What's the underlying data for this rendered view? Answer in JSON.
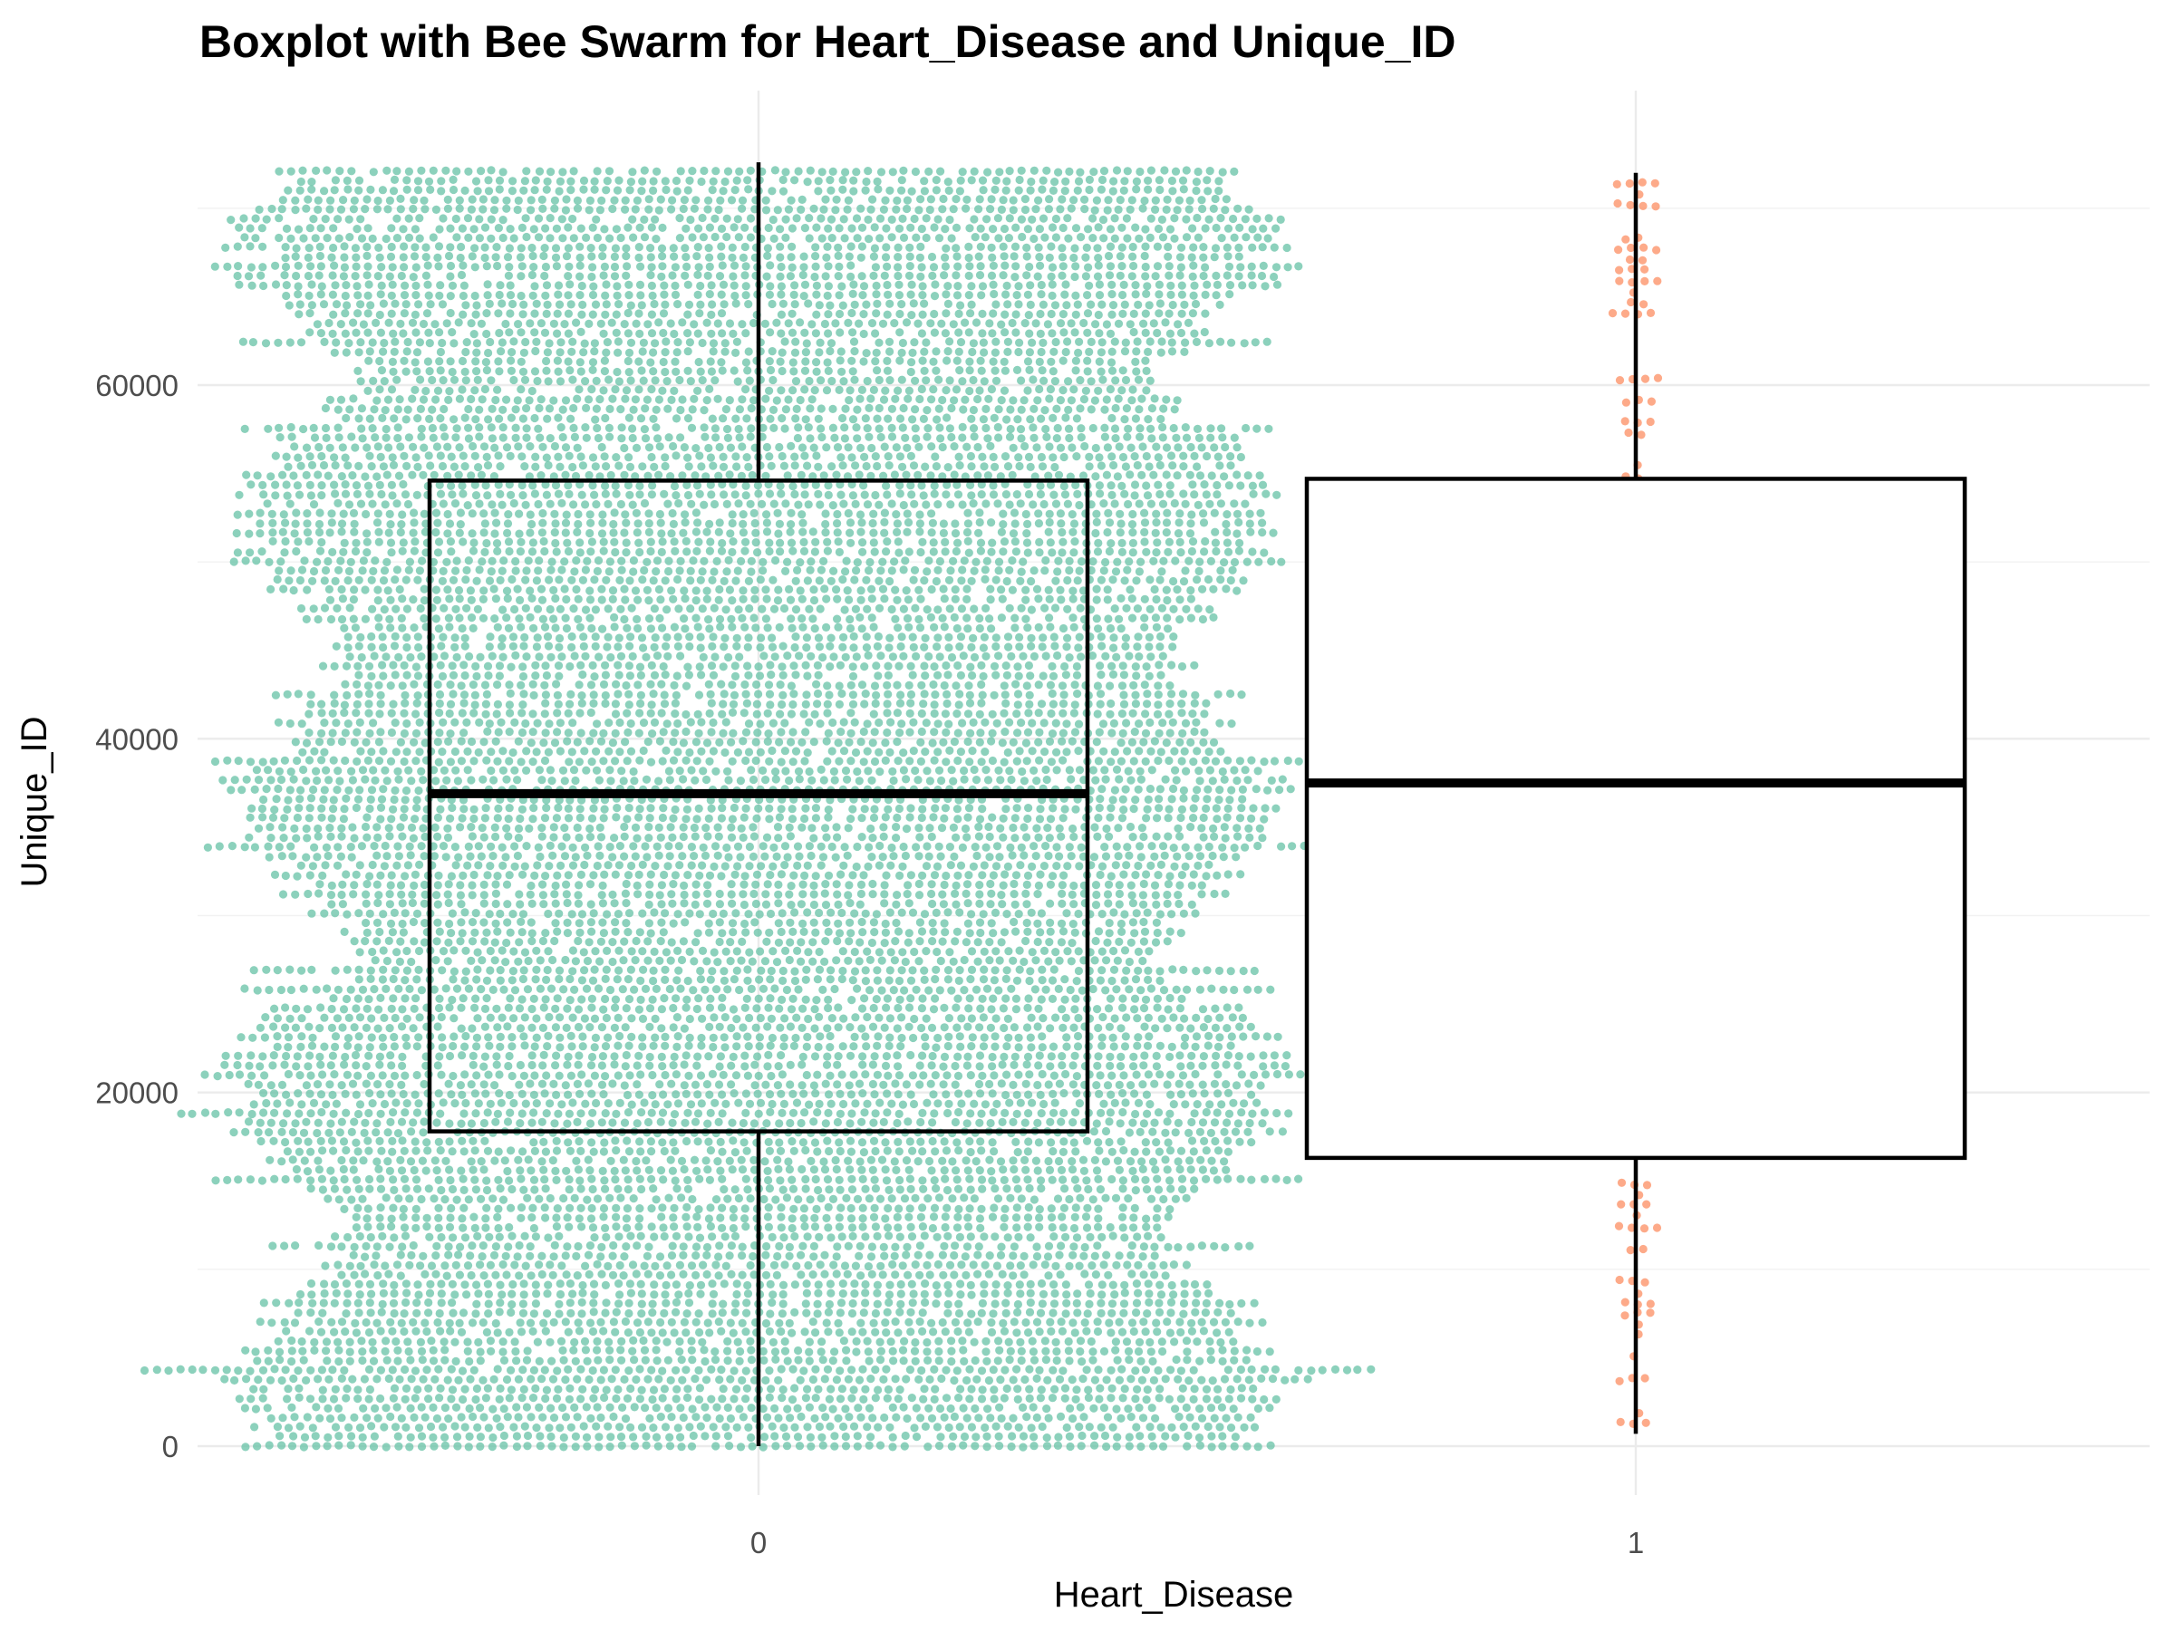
{
  "chart_data": {
    "type": "boxplot",
    "title": "Boxplot with Bee Swarm for Heart_Disease and Unique_ID",
    "xlabel": "Heart_Disease",
    "ylabel": "Unique_ID",
    "categories": [
      "0",
      "1"
    ],
    "yticks": [
      0,
      20000,
      40000,
      60000
    ],
    "ylim": [
      -4000,
      78000
    ],
    "grid": true,
    "boxes": [
      {
        "category": "0",
        "min": 0,
        "q1": 17800,
        "median": 36900,
        "q3": 54600,
        "max": 72600,
        "color": "#66c2a5"
      },
      {
        "category": "1",
        "min": 700,
        "q1": 16300,
        "median": 37500,
        "q3": 54700,
        "max": 72000,
        "color": "#fc8d62"
      }
    ],
    "swarm": [
      {
        "category": "0",
        "approx_points": 3600,
        "color": "#66c2a5"
      },
      {
        "category": "1",
        "approx_points": 260,
        "color": "#fc8d62"
      }
    ]
  }
}
